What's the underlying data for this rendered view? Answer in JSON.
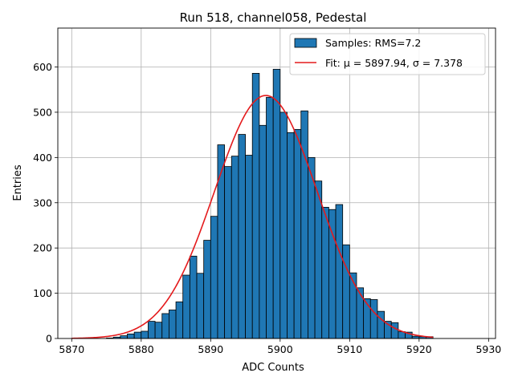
{
  "chart_data": {
    "type": "bar",
    "title": "Run 518, channel058, Pedestal",
    "xlabel": "ADC Counts",
    "ylabel": "Entries",
    "xlim": [
      5868,
      5931
    ],
    "ylim": [
      0,
      686
    ],
    "xticks": [
      5870,
      5880,
      5890,
      5900,
      5910,
      5920,
      5930
    ],
    "yticks": [
      0,
      100,
      200,
      300,
      400,
      500,
      600
    ],
    "grid": true,
    "legend_position": "top-right",
    "colors": {
      "bar_fill": "#1f77b4",
      "bar_edge": "#000000",
      "fit_line": "#e41a1c",
      "grid": "#b0b0b0"
    },
    "histogram": {
      "name": "Samples: RMS=7.2",
      "bin_start": 5870,
      "bin_width": 1,
      "counts": [
        0,
        0,
        0,
        0,
        0,
        1,
        3,
        6,
        10,
        14,
        16,
        38,
        36,
        55,
        63,
        81,
        140,
        182,
        144,
        217,
        270,
        428,
        380,
        403,
        451,
        405,
        586,
        471,
        533,
        595,
        500,
        455,
        462,
        503,
        400,
        348,
        290,
        285,
        296,
        207,
        145,
        112,
        88,
        86,
        60,
        38,
        35,
        15,
        14,
        5,
        4,
        4
      ]
    },
    "fit": {
      "name": "Fit: μ = 5897.94, σ = 7.378",
      "mu": 5897.94,
      "sigma": 7.378,
      "amplitude": 537,
      "x_range": [
        5870,
        5922
      ]
    }
  }
}
